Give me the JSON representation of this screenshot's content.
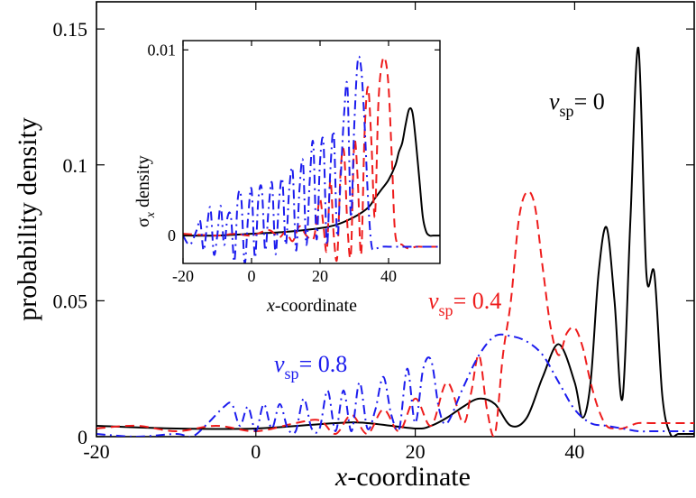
{
  "chart_data": [
    {
      "type": "line",
      "xlabel_italic": "x",
      "xlabel_rest": "-coordinate",
      "ylabel": "probability density",
      "xlim": [
        -20,
        55
      ],
      "ylim": [
        0,
        0.16
      ],
      "xticks": [
        -20,
        0,
        20,
        40
      ],
      "xtick_labels": [
        "-20",
        "0",
        "20",
        "40"
      ],
      "yticks": [
        0,
        0.05,
        0.1,
        0.15
      ],
      "ytick_labels": [
        "0",
        "0.05",
        "0.1",
        "0.15"
      ],
      "grid": false,
      "series": [
        {
          "name": "v_sp = 0",
          "label_sym": "v",
          "label_sub": "sp",
          "label_value": "= 0",
          "color": "#000000",
          "dash": "solid",
          "x": [
            -20,
            -10,
            0,
            10,
            14,
            20,
            22,
            24,
            26,
            28,
            30,
            32,
            34,
            36,
            38,
            40,
            41,
            42,
            43,
            44,
            45,
            46,
            47,
            48,
            49,
            50,
            51,
            52,
            53,
            54,
            55
          ],
          "y": [
            0.004,
            0.003,
            0.003,
            0.005,
            0.005,
            0.003,
            0.004,
            0.007,
            0.011,
            0.014,
            0.012,
            0.004,
            0.007,
            0.022,
            0.034,
            0.02,
            0.007,
            0.02,
            0.06,
            0.077,
            0.05,
            0.014,
            0.08,
            0.143,
            0.06,
            0.06,
            0.015,
            0.001,
            0.001,
            0.001,
            0.001
          ]
        },
        {
          "name": "v_sp = 0.4",
          "label_sym": "v",
          "label_sub": "sp",
          "label_value": "= 0.4",
          "color": "#ee1c1c",
          "dash": "dashed",
          "x": [
            -20,
            -15,
            -10,
            -5,
            0,
            5,
            8,
            10,
            12,
            14,
            16,
            18,
            20,
            22,
            24,
            26,
            27,
            28,
            29,
            30,
            31,
            32,
            33,
            34,
            35,
            36,
            37,
            38,
            39,
            40,
            41,
            42,
            43,
            44,
            45,
            46,
            47,
            48,
            50,
            55
          ],
          "y": [
            0.003,
            0.004,
            0.002,
            0.004,
            0.002,
            0.005,
            0.006,
            0.001,
            0.008,
            0.001,
            0.01,
            0.002,
            0.014,
            0.004,
            0.02,
            0.005,
            0.016,
            0.03,
            0.01,
            0.001,
            0.03,
            0.05,
            0.08,
            0.09,
            0.085,
            0.062,
            0.04,
            0.03,
            0.038,
            0.04,
            0.033,
            0.02,
            0.01,
            0.004,
            0.003,
            0.003,
            0.004,
            0.005,
            0.005,
            0.005
          ]
        },
        {
          "name": "v_sp = 0.8",
          "label_sym": "v",
          "label_sub": "sp",
          "label_value": "= 0.8",
          "color": "#1c1cee",
          "dash": "dashdot",
          "x": [
            -20,
            -15,
            -10,
            -8,
            -6,
            -4,
            -3,
            -2,
            -1,
            0,
            1,
            2,
            3,
            4,
            5,
            6,
            7,
            8,
            9,
            10,
            11,
            12,
            13,
            14,
            15,
            16,
            17,
            18,
            19,
            20,
            21,
            22,
            23,
            24,
            26,
            28,
            30,
            32,
            34,
            36,
            38,
            40,
            42,
            44,
            46,
            48,
            50,
            55
          ],
          "y": [
            0.001,
            0.0,
            0.001,
            0.0,
            0.005,
            0.011,
            0.012,
            0.004,
            0.011,
            0.002,
            0.012,
            0.003,
            0.012,
            0.003,
            0.002,
            0.014,
            0.003,
            0.003,
            0.017,
            0.002,
            0.017,
            0.002,
            0.02,
            0.003,
            0.01,
            0.022,
            0.008,
            0.003,
            0.025,
            0.005,
            0.025,
            0.028,
            0.01,
            0.005,
            0.018,
            0.03,
            0.037,
            0.037,
            0.035,
            0.03,
            0.02,
            0.01,
            0.005,
            0.004,
            0.003,
            0.002,
            0.002,
            0.002
          ]
        }
      ]
    },
    {
      "type": "line",
      "xlabel_italic": "x",
      "xlabel_rest": "-coordinate",
      "ylabel_sym": "σ",
      "ylabel_sub": "x",
      "ylabel_rest": "density",
      "xlim": [
        -20,
        55
      ],
      "ylim": [
        -0.0015,
        0.0105
      ],
      "xticks": [
        -20,
        0,
        20,
        40
      ],
      "xtick_labels": [
        "-20",
        "0",
        "20",
        "40"
      ],
      "yticks": [
        0,
        0.01
      ],
      "ytick_labels": [
        "0",
        "0.01"
      ],
      "grid": false,
      "series": [
        {
          "name": "v_sp = 0",
          "color": "#000000",
          "dash": "solid",
          "x": [
            -20,
            -10,
            0,
            10,
            20,
            25,
            30,
            34,
            36,
            38,
            40,
            42,
            43,
            44,
            45,
            46,
            47,
            48,
            49,
            50,
            51,
            52,
            53,
            55
          ],
          "y": [
            0.0,
            0.0,
            0.0001,
            0.0002,
            0.0004,
            0.0006,
            0.001,
            0.0015,
            0.002,
            0.0025,
            0.003,
            0.0038,
            0.0045,
            0.005,
            0.006,
            0.0068,
            0.0066,
            0.005,
            0.003,
            0.001,
            0.0002,
            0.0,
            0.0,
            0.0
          ]
        },
        {
          "name": "v_sp = 0.4",
          "color": "#ee1c1c",
          "dash": "dashed",
          "x": [
            -20,
            -10,
            -5,
            0,
            5,
            8,
            10,
            12,
            14,
            16,
            18,
            19,
            20,
            21,
            22,
            23,
            24,
            25,
            26,
            27,
            28,
            29,
            30,
            31,
            32,
            33,
            34,
            35,
            36,
            37,
            38,
            39,
            40,
            41,
            42,
            44,
            46,
            48,
            50,
            55
          ],
          "y": [
            0.0001,
            0.0,
            0.0001,
            0.0,
            0.0003,
            -0.0001,
            0.0002,
            -0.0003,
            0.0005,
            0.0,
            -0.0002,
            0.0008,
            0.002,
            0.0005,
            -0.0008,
            0.003,
            0.0,
            -0.0012,
            0.0035,
            0.0045,
            0.0005,
            -0.001,
            0.005,
            0.003,
            -0.001,
            0.0055,
            0.008,
            0.005,
            0.001,
            0.007,
            0.0092,
            0.0095,
            0.008,
            0.004,
            0.0,
            -0.0005,
            -0.0007,
            -0.0006,
            -0.0006,
            -0.0006
          ]
        },
        {
          "name": "v_sp = 0.8",
          "color": "#1c1cee",
          "dash": "dashdot",
          "x": [
            -20,
            -18,
            -16,
            -15,
            -14,
            -13,
            -12,
            -11,
            -10,
            -9,
            -8,
            -7,
            -6,
            -5,
            -4,
            -3,
            -2,
            -1,
            0,
            1,
            2,
            3,
            4,
            5,
            6,
            7,
            8,
            9,
            10,
            11,
            12,
            13,
            14,
            15,
            16,
            17,
            18,
            19,
            20,
            21,
            22,
            23,
            24,
            25,
            26,
            27,
            28,
            29,
            30,
            31,
            32,
            33,
            34,
            35,
            36,
            38,
            40,
            42,
            44,
            46,
            50,
            55
          ],
          "y": [
            0.0,
            -0.0005,
            0.0003,
            0.0008,
            -0.0008,
            0.0005,
            0.0015,
            -0.001,
            0.0,
            0.0016,
            -0.0005,
            0.001,
            0.001,
            -0.0014,
            0.002,
            0.002,
            -0.0015,
            0.001,
            0.0025,
            -0.0012,
            0.002,
            0.0025,
            -0.0008,
            0.0015,
            0.0028,
            -0.001,
            0.0018,
            0.003,
            -0.0005,
            0.0025,
            0.0035,
            -0.0008,
            0.0025,
            0.004,
            -0.0005,
            0.003,
            0.005,
            -0.0002,
            0.004,
            0.005,
            -0.0005,
            0.0035,
            0.0055,
            0.0,
            0.003,
            0.0065,
            0.008,
            0.001,
            0.006,
            0.0094,
            0.009,
            0.006,
            0.002,
            -0.0005,
            -0.0007,
            -0.0006,
            -0.0006,
            -0.0006,
            -0.0006,
            -0.0006,
            -0.0006,
            -0.0006
          ]
        }
      ]
    }
  ]
}
